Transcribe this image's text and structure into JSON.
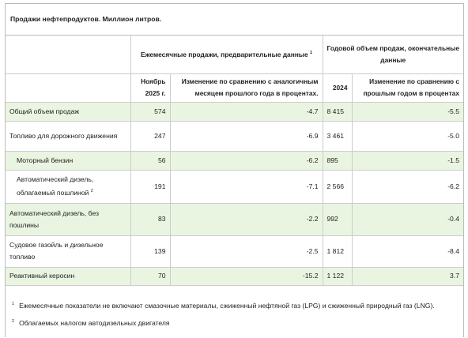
{
  "header": {
    "title": "Продажи нефтепродуктов. Миллион литров."
  },
  "table": {
    "group_headers": [
      {
        "text": "Ежемесячные продажи, предварительные данные",
        "note": "1"
      },
      {
        "text": "Годовой объем продаж, окончательные данные"
      }
    ],
    "columns": [
      "Ноябрь 2025 г.",
      "Изменение по сравнению с аналогичным месяцем прошлого года в процентах.",
      "2024",
      "Изменение по сравнению с прошлым годом в процентах"
    ],
    "rows": [
      {
        "label": "Общий объем продаж",
        "cells": [
          "574",
          "-4.7",
          "8 415",
          "-5.5"
        ]
      },
      {
        "label": "Топливо для дорожного движения",
        "cells": [
          "247",
          "-6.9",
          "3 461",
          "-5.0"
        ]
      },
      {
        "label": "Моторный бензин",
        "cells": [
          "56",
          "-6.2",
          "895",
          "-1.5"
        ]
      },
      {
        "label": "Автоматический дизель, облагаемый пошлиной",
        "note": "2",
        "cells": [
          "191",
          "-7.1",
          "2 566",
          "-6.2"
        ]
      },
      {
        "label": "Автоматический дизель, без пошлины",
        "cells": [
          "83",
          "-2.2",
          "992",
          "-0.4"
        ]
      },
      {
        "label": "Судовое газойль и дизельное топливо",
        "cells": [
          "139",
          "-2.5",
          "1 812",
          "-8.4"
        ]
      },
      {
        "label": "Реактивный керосин",
        "cells": [
          "70",
          "-15.2",
          "1 122",
          "3.7"
        ]
      }
    ]
  },
  "footnotes": [
    {
      "mark": "1",
      "text": "Ежемесячные показатели не включают смазочные материалы, сжиженный нефтяной газ (LPG) и сжиженный природный газ (LNG)."
    },
    {
      "mark": "2",
      "text": "Облагаемых налогом автодизельных двигателя"
    }
  ]
}
